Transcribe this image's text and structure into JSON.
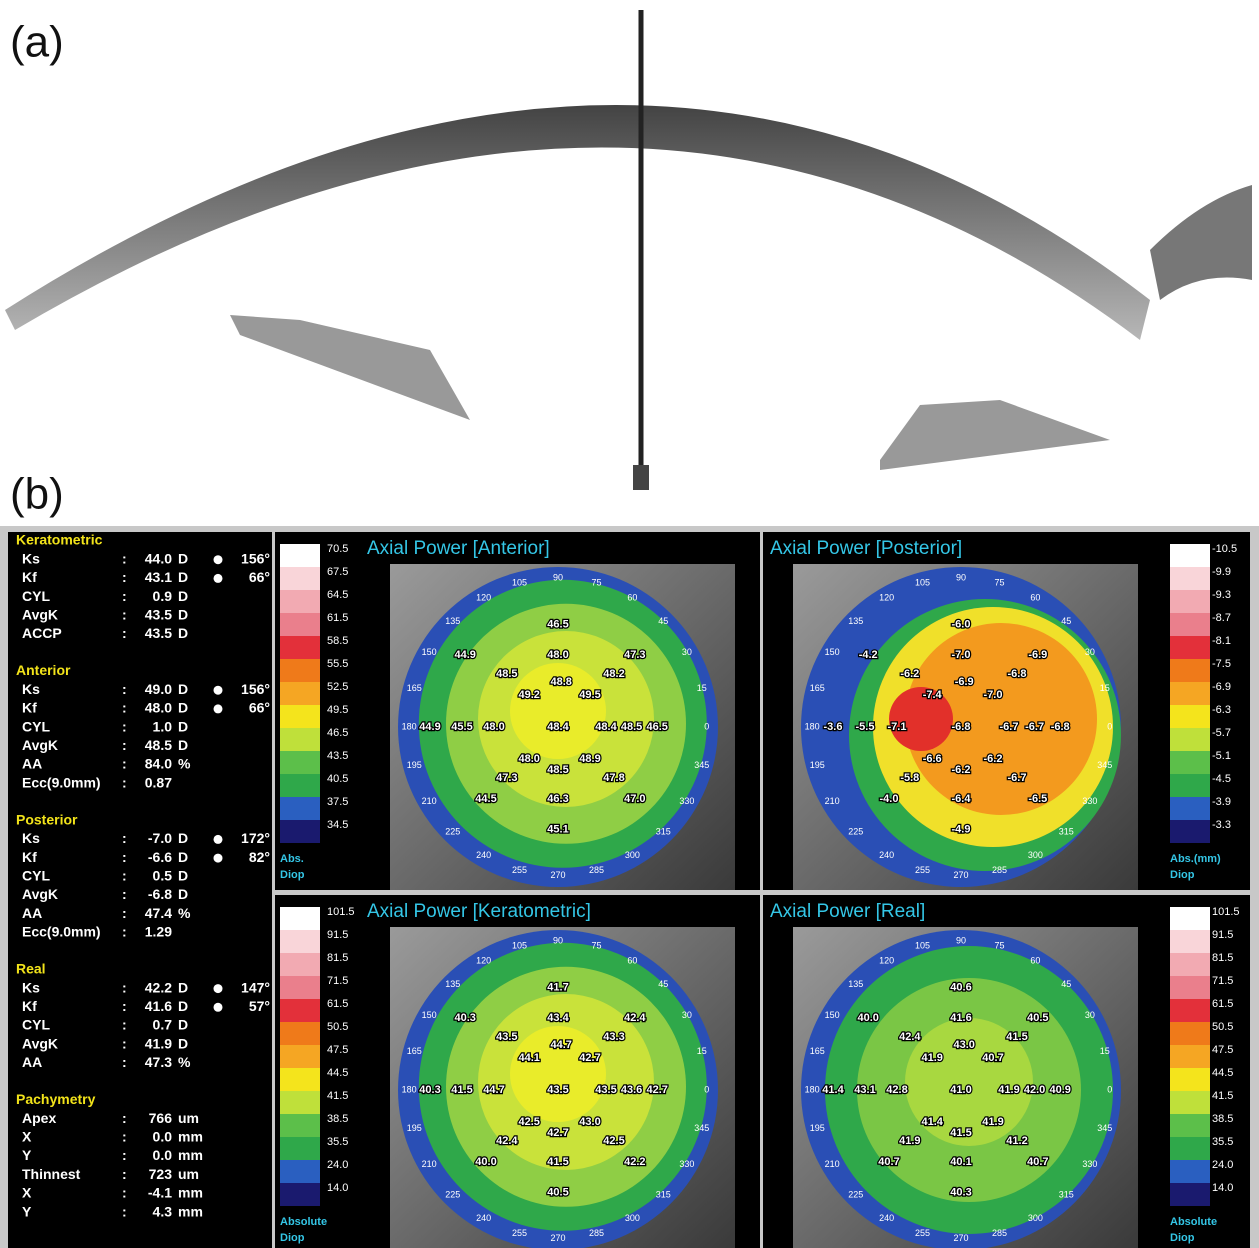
{
  "panel_labels": [
    "(a)",
    "(b)"
  ],
  "summary": {
    "separator": ":",
    "sections": [
      {
        "title": "Keratometric",
        "rows": [
          {
            "label": "Ks",
            "value": "44.0",
            "unit": "D",
            "axis": "156°"
          },
          {
            "label": "Kf",
            "value": "43.1",
            "unit": "D",
            "axis": "66°"
          },
          {
            "label": "CYL",
            "value": "0.9",
            "unit": "D"
          },
          {
            "label": "AvgK",
            "value": "43.5",
            "unit": "D"
          },
          {
            "label": "ACCP",
            "value": "43.5",
            "unit": "D"
          }
        ]
      },
      {
        "title": "Anterior",
        "rows": [
          {
            "label": "Ks",
            "value": "49.0",
            "unit": "D",
            "axis": "156°"
          },
          {
            "label": "Kf",
            "value": "48.0",
            "unit": "D",
            "axis": "66°"
          },
          {
            "label": "CYL",
            "value": "1.0",
            "unit": "D"
          },
          {
            "label": "AvgK",
            "value": "48.5",
            "unit": "D"
          },
          {
            "label": "AA",
            "value": "84.0",
            "unit": "%"
          },
          {
            "label": "Ecc(9.0mm)",
            "value": "0.87"
          }
        ]
      },
      {
        "title": "Posterior",
        "rows": [
          {
            "label": "Ks",
            "value": "-7.0",
            "unit": "D",
            "axis": "172°"
          },
          {
            "label": "Kf",
            "value": "-6.6",
            "unit": "D",
            "axis": "82°"
          },
          {
            "label": "CYL",
            "value": "0.5",
            "unit": "D"
          },
          {
            "label": "AvgK",
            "value": "-6.8",
            "unit": "D"
          },
          {
            "label": "AA",
            "value": "47.4",
            "unit": "%"
          },
          {
            "label": "Ecc(9.0mm)",
            "value": "1.29"
          }
        ]
      },
      {
        "title": "Real",
        "rows": [
          {
            "label": "Ks",
            "value": "42.2",
            "unit": "D",
            "axis": "147°"
          },
          {
            "label": "Kf",
            "value": "41.6",
            "unit": "D",
            "axis": "57°"
          },
          {
            "label": "CYL",
            "value": "0.7",
            "unit": "D"
          },
          {
            "label": "AvgK",
            "value": "41.9",
            "unit": "D"
          },
          {
            "label": "AA",
            "value": "47.3",
            "unit": "%"
          }
        ]
      },
      {
        "title": "Pachymetry",
        "rows": [
          {
            "label": "Apex",
            "value": "766",
            "unit": "um"
          },
          {
            "label": "X",
            "value": "0.0",
            "unit": "mm"
          },
          {
            "label": "Y",
            "value": "0.0",
            "unit": "mm"
          },
          {
            "label": "Thinnest",
            "value": "723",
            "unit": "um"
          },
          {
            "label": "X",
            "value": "-4.1",
            "unit": "mm"
          },
          {
            "label": "Y",
            "value": "4.3",
            "unit": "mm"
          }
        ]
      }
    ]
  },
  "angle_labels": [
    "0",
    "15",
    "30",
    "45",
    "60",
    "75",
    "90",
    "105",
    "120",
    "135",
    "150",
    "165",
    "180",
    "195",
    "210",
    "225",
    "240",
    "255",
    "270",
    "285",
    "300",
    "315",
    "330",
    "345"
  ],
  "maps": [
    {
      "title": "Axial Power [Anterior]",
      "scale": [
        "70.5",
        "67.5",
        "64.5",
        "61.5",
        "58.5",
        "55.5",
        "52.5",
        "49.5",
        "46.5",
        "43.5",
        "40.5",
        "37.5",
        "34.5"
      ],
      "scale_unit": [
        "Abs.",
        "Diop"
      ],
      "values": [
        "46.5",
        "44.9",
        "48.0",
        "47.3",
        "48.5",
        "48.8",
        "48.2",
        "49.2",
        "49.5",
        "44.9",
        "45.5",
        "48.0",
        "48.4",
        "48.4",
        "48.5",
        "46.5",
        "48.0",
        "48.9",
        "48.5",
        "47.3",
        "47.8",
        "44.5",
        "46.3",
        "47.0",
        "45.1"
      ]
    },
    {
      "title": "Axial Power [Posterior]",
      "scale": [
        "-10.5",
        "-9.9",
        "-9.3",
        "-8.7",
        "-8.1",
        "-7.5",
        "-6.9",
        "-6.3",
        "-5.7",
        "-5.1",
        "-4.5",
        "-3.9",
        "-3.3"
      ],
      "scale_unit": [
        "Abs.(mm)",
        "Diop"
      ],
      "values": [
        "-6.0",
        "-4.2",
        "-7.0",
        "-6.9",
        "-6.2",
        "-6.9",
        "-6.8",
        "-7.4",
        "-7.0",
        "-3.6",
        "-5.5",
        "-7.1",
        "-6.8",
        "-6.7",
        "-6.7",
        "-6.8",
        "-6.6",
        "-6.2",
        "-6.2",
        "-5.8",
        "-6.7",
        "-4.0",
        "-6.4",
        "-6.5",
        "-4.9"
      ]
    },
    {
      "title": "Axial Power [Keratometric]",
      "scale": [
        "101.5",
        "91.5",
        "81.5",
        "71.5",
        "61.5",
        "50.5",
        "47.5",
        "44.5",
        "41.5",
        "38.5",
        "35.5",
        "24.0",
        "14.0"
      ],
      "scale_unit": [
        "Absolute",
        "Diop"
      ],
      "values": [
        "41.7",
        "40.3",
        "43.4",
        "42.4",
        "43.5",
        "44.7",
        "43.3",
        "44.1",
        "42.7",
        "40.3",
        "41.5",
        "44.7",
        "43.5",
        "43.5",
        "43.6",
        "42.7",
        "42.5",
        "43.0",
        "42.7",
        "42.4",
        "42.5",
        "40.0",
        "41.5",
        "42.2",
        "40.5"
      ]
    },
    {
      "title": "Axial Power [Real]",
      "scale": [
        "101.5",
        "91.5",
        "81.5",
        "71.5",
        "61.5",
        "50.5",
        "47.5",
        "44.5",
        "41.5",
        "38.5",
        "35.5",
        "24.0",
        "14.0"
      ],
      "scale_unit": [
        "Absolute",
        "Diop"
      ],
      "values": [
        "40.6",
        "40.0",
        "41.6",
        "40.5",
        "42.4",
        "43.0",
        "41.5",
        "41.9",
        "40.7",
        "41.4",
        "43.1",
        "42.8",
        "41.0",
        "41.9",
        "42.0",
        "40.9",
        "41.4",
        "41.9",
        "41.5",
        "41.9",
        "41.2",
        "40.7",
        "40.1",
        "40.7",
        "40.3"
      ]
    }
  ]
}
